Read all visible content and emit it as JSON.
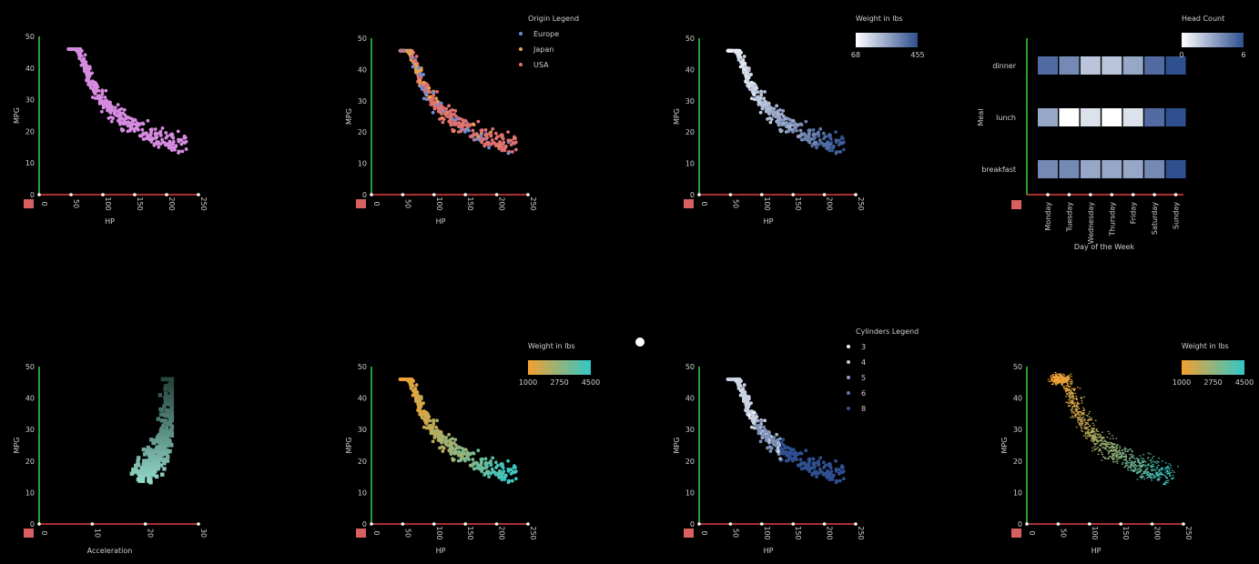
{
  "colors": {
    "x_axis": "#e04040",
    "y_axis": "#39d339",
    "background": "#000000",
    "square_marker": "#d86060",
    "purple": "#d68be0",
    "europe": "#6b8ed6",
    "japan": "#e8a050",
    "usa": "#e07070",
    "blue_low": "#ffffff",
    "blue_high": "#2f4f8f",
    "orange_low": "#f5a030",
    "teal_high": "#30c8c8"
  },
  "chart_data": [
    {
      "id": "c1",
      "type": "scatter",
      "xlabel": "HP",
      "ylabel": "MPG",
      "xlim": [
        0,
        250
      ],
      "ylim": [
        0,
        50
      ],
      "xticks": [
        "0",
        "50",
        "100",
        "150",
        "200",
        "250"
      ],
      "yticks": [
        "0",
        "10",
        "20",
        "30",
        "40",
        "50"
      ],
      "color_mode": "single",
      "marker_color": "#d68be0",
      "sample": [
        [
          90,
          40
        ],
        [
          95,
          42
        ],
        [
          100,
          35
        ],
        [
          110,
          30
        ],
        [
          120,
          25
        ],
        [
          130,
          22
        ],
        [
          150,
          18
        ],
        [
          170,
          15
        ],
        [
          200,
          13
        ],
        [
          230,
          12
        ]
      ]
    },
    {
      "id": "c2",
      "type": "scatter",
      "xlabel": "HP",
      "ylabel": "MPG",
      "xlim": [
        0,
        250
      ],
      "ylim": [
        0,
        50
      ],
      "xticks": [
        "0",
        "50",
        "100",
        "150",
        "200",
        "250"
      ],
      "yticks": [
        "0",
        "10",
        "20",
        "30",
        "40",
        "50"
      ],
      "color_mode": "category",
      "legend": {
        "title": "Origin Legend",
        "items": [
          "Europe",
          "Japan",
          "USA"
        ]
      }
    },
    {
      "id": "c3",
      "type": "scatter",
      "xlabel": "HP",
      "ylabel": "MPG",
      "xlim": [
        0,
        250
      ],
      "ylim": [
        0,
        50
      ],
      "xticks": [
        "0",
        "50",
        "100",
        "150",
        "200",
        "250"
      ],
      "yticks": [
        "0",
        "10",
        "20",
        "30",
        "40",
        "50"
      ],
      "color_mode": "gradient_blue",
      "legend": {
        "title": "Weight in lbs",
        "min": "68",
        "max": "455"
      }
    },
    {
      "id": "c4",
      "type": "heatmap",
      "xlabel": "Day of the Week",
      "ylabel": "Meal",
      "categories_x": [
        "Monday",
        "Tuesday",
        "Wednesday",
        "Thursday",
        "Friday",
        "Saturday",
        "Sunday"
      ],
      "categories_y": [
        "breakfast",
        "lunch",
        "dinner"
      ],
      "values": [
        [
          4,
          4,
          3,
          3,
          3,
          4,
          6
        ],
        [
          3,
          0,
          1,
          0,
          1,
          5,
          6
        ],
        [
          5,
          4,
          2,
          2,
          3,
          5,
          6
        ]
      ],
      "legend": {
        "title": "Head Count",
        "min": "0",
        "max": "6"
      }
    },
    {
      "id": "c5",
      "type": "scatter",
      "xlabel": "Acceleration",
      "ylabel": "MPG",
      "xlim": [
        0,
        30
      ],
      "ylim": [
        0,
        50
      ],
      "xticks": [
        "0",
        "10",
        "20",
        "30"
      ],
      "yticks": [
        "0",
        "10",
        "20",
        "30",
        "40",
        "50"
      ],
      "color_mode": "mint"
    },
    {
      "id": "c6",
      "type": "scatter",
      "xlabel": "HP",
      "ylabel": "MPG",
      "xlim": [
        0,
        250
      ],
      "ylim": [
        0,
        50
      ],
      "xticks": [
        "0",
        "50",
        "100",
        "150",
        "200",
        "250"
      ],
      "yticks": [
        "0",
        "10",
        "20",
        "30",
        "40",
        "50"
      ],
      "color_mode": "gradient_orange",
      "legend": {
        "title": "Weight in lbs",
        "labels": [
          "1000",
          "2750",
          "4500"
        ]
      }
    },
    {
      "id": "c7",
      "type": "scatter",
      "xlabel": "HP",
      "ylabel": "MPG",
      "xlim": [
        0,
        250
      ],
      "ylim": [
        0,
        50
      ],
      "xticks": [
        "0",
        "50",
        "100",
        "150",
        "200",
        "250"
      ],
      "yticks": [
        "0",
        "10",
        "20",
        "30",
        "40",
        "50"
      ],
      "color_mode": "cylinders",
      "legend": {
        "title": "Cylinders Legend",
        "items": [
          "3",
          "4",
          "5",
          "6",
          "8"
        ]
      }
    },
    {
      "id": "c8",
      "type": "scatter",
      "xlabel": "HP",
      "ylabel": "MPG",
      "xlim": [
        0,
        250
      ],
      "ylim": [
        0,
        50
      ],
      "xticks": [
        "0",
        "50",
        "100",
        "150",
        "200",
        "250"
      ],
      "yticks": [
        "0",
        "10",
        "20",
        "30",
        "40",
        "50"
      ],
      "color_mode": "dense_orange",
      "legend": {
        "title": "Weight in lbs",
        "labels": [
          "1000",
          "2750",
          "4500"
        ]
      }
    }
  ]
}
